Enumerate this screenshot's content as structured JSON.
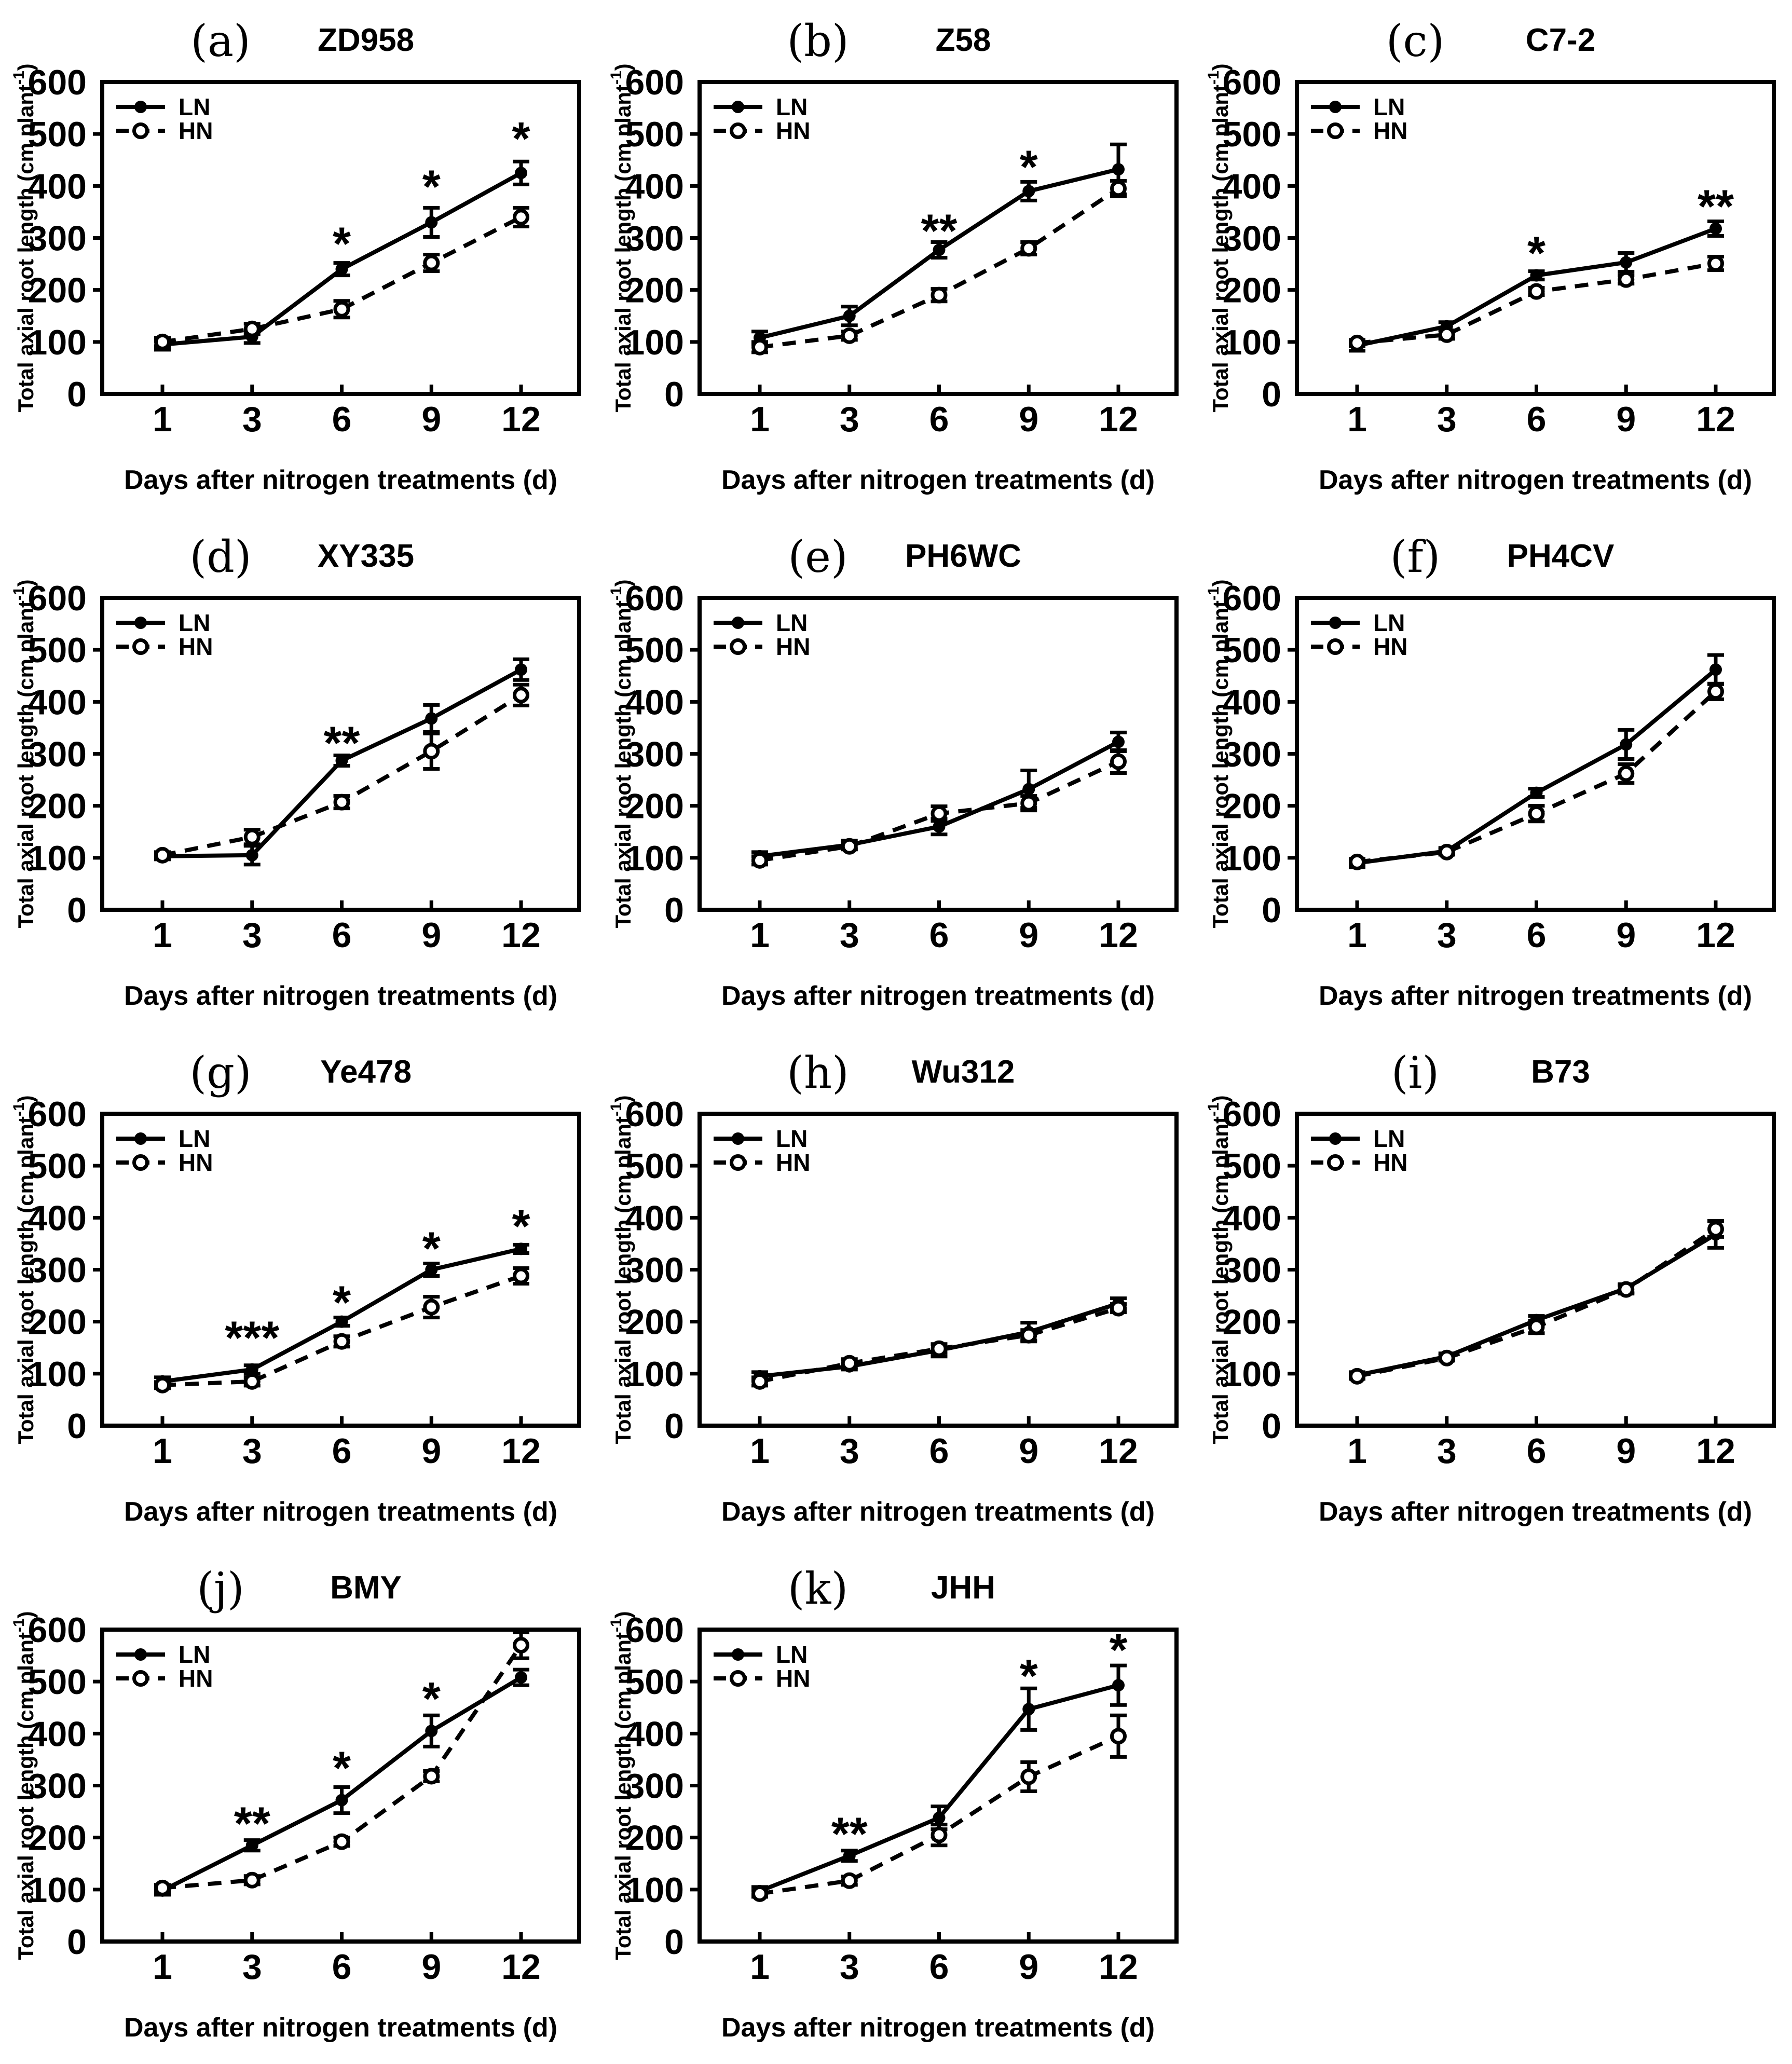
{
  "figure": {
    "background": "#ffffff",
    "ink_color": "#000000",
    "series_legend": [
      "LN",
      "HN"
    ]
  },
  "chart_data": [
    {
      "type": "line",
      "panel_label": "(a)",
      "title": "ZD958",
      "xlabel": "Days after nitrogen treatments (d)",
      "ylabel": "Total axial root length (cm plant⁻¹)",
      "x": [
        1,
        3,
        6,
        9,
        12
      ],
      "ylim": [
        0,
        600
      ],
      "yticks": [
        0,
        100,
        200,
        300,
        400,
        500,
        600
      ],
      "legend_position": "top-left",
      "series": [
        {
          "name": "LN",
          "line": "solid",
          "marker": "filled-circle",
          "values": [
            95,
            110,
            240,
            330,
            425
          ],
          "errors": [
            10,
            12,
            12,
            28,
            22
          ]
        },
        {
          "name": "HN",
          "line": "dashed",
          "marker": "open-circle",
          "values": [
            100,
            125,
            163,
            252,
            340
          ],
          "errors": [
            8,
            10,
            16,
            16,
            18
          ]
        }
      ],
      "significance": [
        {
          "x": 6,
          "label": "*",
          "y": 290
        },
        {
          "x": 9,
          "label": "*",
          "y": 400
        },
        {
          "x": 12,
          "label": "*",
          "y": 492
        }
      ]
    },
    {
      "type": "line",
      "panel_label": "(b)",
      "title": "Z58",
      "xlabel": "Days after nitrogen treatments (d)",
      "ylabel": "Total axial root length (cm plant⁻¹)",
      "x": [
        1,
        3,
        6,
        9,
        12
      ],
      "ylim": [
        0,
        600
      ],
      "yticks": [
        0,
        100,
        200,
        300,
        400,
        500,
        600
      ],
      "legend_position": "top-left",
      "series": [
        {
          "name": "LN",
          "line": "solid",
          "marker": "filled-circle",
          "values": [
            108,
            150,
            277,
            390,
            432
          ],
          "errors": [
            12,
            18,
            15,
            18,
            48
          ]
        },
        {
          "name": "HN",
          "line": "dashed",
          "marker": "open-circle",
          "values": [
            90,
            112,
            190,
            280,
            395
          ],
          "errors": [
            10,
            8,
            12,
            12,
            15
          ]
        }
      ],
      "significance": [
        {
          "x": 6,
          "label": "**",
          "y": 315
        },
        {
          "x": 9,
          "label": "*",
          "y": 438
        }
      ]
    },
    {
      "type": "line",
      "panel_label": "(c)",
      "title": "C7-2",
      "xlabel": "Days after nitrogen treatments (d)",
      "ylabel": "Total axial root length (cm plant⁻¹)",
      "x": [
        1,
        3,
        6,
        9,
        12
      ],
      "ylim": [
        0,
        600
      ],
      "yticks": [
        0,
        100,
        200,
        300,
        400,
        500,
        600
      ],
      "legend_position": "top-left",
      "series": [
        {
          "name": "LN",
          "line": "solid",
          "marker": "filled-circle",
          "values": [
            93,
            130,
            228,
            253,
            318
          ],
          "errors": [
            10,
            8,
            8,
            18,
            14
          ]
        },
        {
          "name": "HN",
          "line": "dashed",
          "marker": "open-circle",
          "values": [
            98,
            114,
            197,
            220,
            251
          ],
          "errors": [
            6,
            8,
            7,
            8,
            13
          ]
        }
      ],
      "significance": [
        {
          "x": 6,
          "label": "*",
          "y": 272
        },
        {
          "x": 12,
          "label": "**",
          "y": 362
        }
      ]
    },
    {
      "type": "line",
      "panel_label": "(d)",
      "title": "XY335",
      "xlabel": "Days after nitrogen treatments (d)",
      "ylabel": "Total axial root length (cm plant⁻¹)",
      "x": [
        1,
        3,
        6,
        9,
        12
      ],
      "ylim": [
        0,
        600
      ],
      "yticks": [
        0,
        100,
        200,
        300,
        400,
        500,
        600
      ],
      "legend_position": "top-left",
      "series": [
        {
          "name": "LN",
          "line": "solid",
          "marker": "filled-circle",
          "values": [
            103,
            105,
            287,
            368,
            462
          ],
          "errors": [
            6,
            18,
            10,
            26,
            20
          ]
        },
        {
          "name": "HN",
          "line": "dashed",
          "marker": "open-circle",
          "values": [
            105,
            140,
            207,
            305,
            413
          ],
          "errors": [
            6,
            14,
            12,
            34,
            20
          ]
        }
      ],
      "significance": [
        {
          "x": 6,
          "label": "**",
          "y": 322
        }
      ]
    },
    {
      "type": "line",
      "panel_label": "(e)",
      "title": "PH6WC",
      "xlabel": "Days after nitrogen treatments (d)",
      "ylabel": "Total axial root length (cm plant⁻¹)",
      "x": [
        1,
        3,
        6,
        9,
        12
      ],
      "ylim": [
        0,
        600
      ],
      "yticks": [
        0,
        100,
        200,
        300,
        400,
        500,
        600
      ],
      "legend_position": "top-left",
      "series": [
        {
          "name": "LN",
          "line": "solid",
          "marker": "filled-circle",
          "values": [
            103,
            125,
            160,
            232,
            323
          ],
          "errors": [
            8,
            8,
            15,
            36,
            18
          ]
        },
        {
          "name": "HN",
          "line": "dashed",
          "marker": "open-circle",
          "values": [
            95,
            122,
            185,
            205,
            285
          ],
          "errors": [
            8,
            6,
            14,
            14,
            22
          ]
        }
      ],
      "significance": []
    },
    {
      "type": "line",
      "panel_label": "(f)",
      "title": "PH4CV",
      "xlabel": "Days after nitrogen treatments (d)",
      "ylabel": "Total axial root length (cm plant⁻¹)",
      "x": [
        1,
        3,
        6,
        9,
        12
      ],
      "ylim": [
        0,
        600
      ],
      "yticks": [
        0,
        100,
        200,
        300,
        400,
        500,
        600
      ],
      "legend_position": "top-left",
      "series": [
        {
          "name": "LN",
          "line": "solid",
          "marker": "filled-circle",
          "values": [
            90,
            113,
            225,
            318,
            462
          ],
          "errors": [
            8,
            6,
            8,
            28,
            28
          ]
        },
        {
          "name": "HN",
          "line": "dashed",
          "marker": "open-circle",
          "values": [
            92,
            111,
            185,
            262,
            420
          ],
          "errors": [
            5,
            5,
            15,
            18,
            15
          ]
        }
      ],
      "significance": []
    },
    {
      "type": "line",
      "panel_label": "(g)",
      "title": "Ye478",
      "xlabel": "Days after nitrogen treatments (d)",
      "ylabel": "Total axial root length (cm plant⁻¹)",
      "x": [
        1,
        3,
        6,
        9,
        12
      ],
      "ylim": [
        0,
        600
      ],
      "yticks": [
        0,
        100,
        200,
        300,
        400,
        500,
        600
      ],
      "legend_position": "top-left",
      "series": [
        {
          "name": "LN",
          "line": "solid",
          "marker": "filled-circle",
          "values": [
            85,
            108,
            200,
            300,
            340
          ],
          "errors": [
            8,
            8,
            8,
            12,
            8
          ]
        },
        {
          "name": "HN",
          "line": "dashed",
          "marker": "open-circle",
          "values": [
            78,
            85,
            162,
            228,
            288
          ],
          "errors": [
            6,
            8,
            10,
            20,
            15
          ]
        }
      ],
      "significance": [
        {
          "x": 3,
          "label": "***",
          "y": 170
        },
        {
          "x": 6,
          "label": "*",
          "y": 238
        },
        {
          "x": 9,
          "label": "*",
          "y": 342
        },
        {
          "x": 12,
          "label": "*",
          "y": 385
        }
      ]
    },
    {
      "type": "line",
      "panel_label": "(h)",
      "title": "Wu312",
      "xlabel": "Days after nitrogen treatments (d)",
      "ylabel": "Total axial root length (cm plant⁻¹)",
      "x": [
        1,
        3,
        6,
        9,
        12
      ],
      "ylim": [
        0,
        600
      ],
      "yticks": [
        0,
        100,
        200,
        300,
        400,
        500,
        600
      ],
      "legend_position": "top-left",
      "series": [
        {
          "name": "LN",
          "line": "solid",
          "marker": "filled-circle",
          "values": [
            95,
            114,
            145,
            180,
            235
          ],
          "errors": [
            8,
            6,
            12,
            18,
            10
          ]
        },
        {
          "name": "HN",
          "line": "dashed",
          "marker": "open-circle",
          "values": [
            85,
            120,
            148,
            174,
            226
          ],
          "errors": [
            8,
            8,
            8,
            10,
            8
          ]
        }
      ],
      "significance": []
    },
    {
      "type": "line",
      "panel_label": "(i)",
      "title": "B73",
      "xlabel": "Days after nitrogen treatments (d)",
      "ylabel": "Total axial root length (cm plant⁻¹)",
      "x": [
        1,
        3,
        6,
        9,
        12
      ],
      "ylim": [
        0,
        600
      ],
      "yticks": [
        0,
        100,
        200,
        300,
        400,
        500,
        600
      ],
      "legend_position": "top-left",
      "series": [
        {
          "name": "LN",
          "line": "solid",
          "marker": "filled-circle",
          "values": [
            97,
            133,
            203,
            264,
            368
          ],
          "errors": [
            6,
            6,
            8,
            8,
            26
          ]
        },
        {
          "name": "HN",
          "line": "dashed",
          "marker": "open-circle",
          "values": [
            95,
            130,
            190,
            262,
            378
          ],
          "errors": [
            5,
            5,
            12,
            8,
            15
          ]
        }
      ],
      "significance": []
    },
    {
      "type": "line",
      "panel_label": "(j)",
      "title": "BMY",
      "xlabel": "Days after nitrogen treatments (d)",
      "ylabel": "Total axial root length (cm plant⁻¹)",
      "x": [
        1,
        3,
        6,
        9,
        12
      ],
      "ylim": [
        0,
        600
      ],
      "yticks": [
        0,
        100,
        200,
        300,
        400,
        500,
        600
      ],
      "legend_position": "top-left",
      "series": [
        {
          "name": "LN",
          "line": "solid",
          "marker": "filled-circle",
          "values": [
            98,
            185,
            272,
            405,
            508
          ],
          "errors": [
            8,
            10,
            25,
            30,
            15
          ]
        },
        {
          "name": "HN",
          "line": "dashed",
          "marker": "open-circle",
          "values": [
            103,
            118,
            192,
            318,
            570
          ],
          "errors": [
            6,
            8,
            8,
            10,
            25
          ]
        }
      ],
      "significance": [
        {
          "x": 3,
          "label": "**",
          "y": 228
        },
        {
          "x": 6,
          "label": "*",
          "y": 335
        },
        {
          "x": 9,
          "label": "*",
          "y": 468
        }
      ]
    },
    {
      "type": "line",
      "panel_label": "(k)",
      "title": "JHH",
      "xlabel": "Days after nitrogen treatments (d)",
      "ylabel": "Total axial root length (cm plant⁻¹)",
      "x": [
        1,
        3,
        6,
        9,
        12
      ],
      "ylim": [
        0,
        600
      ],
      "yticks": [
        0,
        100,
        200,
        300,
        400,
        500,
        600
      ],
      "legend_position": "top-left",
      "series": [
        {
          "name": "LN",
          "line": "solid",
          "marker": "filled-circle",
          "values": [
            97,
            165,
            238,
            447,
            493
          ],
          "errors": [
            8,
            10,
            22,
            40,
            38
          ]
        },
        {
          "name": "HN",
          "line": "dashed",
          "marker": "open-circle",
          "values": [
            92,
            117,
            205,
            317,
            395
          ],
          "errors": [
            6,
            8,
            20,
            28,
            40
          ]
        }
      ],
      "significance": [
        {
          "x": 3,
          "label": "**",
          "y": 208
        },
        {
          "x": 9,
          "label": "*",
          "y": 512
        },
        {
          "x": 12,
          "label": "*",
          "y": 562
        }
      ]
    }
  ]
}
